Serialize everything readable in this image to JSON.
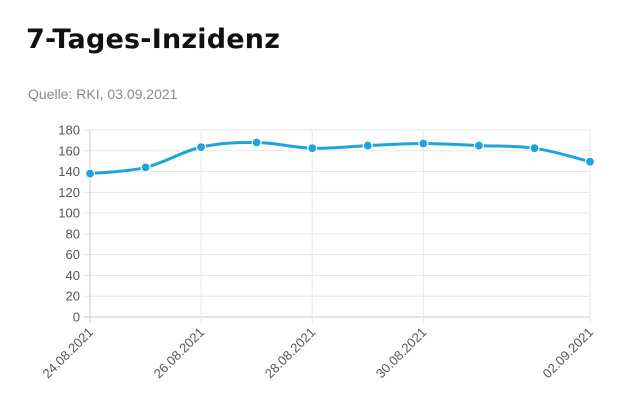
{
  "title": "7-Tages-Inzidenz",
  "source": "Quelle: RKI, 03.09.2021",
  "colors": {
    "line": "#1ea3dc",
    "grid": "#e6e6e6",
    "axis": "#c8c8c8",
    "text": "#555555"
  },
  "chart_data": {
    "type": "line",
    "x": [
      "24.08.2021",
      "25.08.2021",
      "26.08.2021",
      "27.08.2021",
      "28.08.2021",
      "29.08.2021",
      "30.08.2021",
      "31.08.2021",
      "01.09.2021",
      "02.09.2021"
    ],
    "x_tick_labels": [
      "24.08.2021",
      "26.08.2021",
      "28.08.2021",
      "30.08.2021",
      "02.09.2021"
    ],
    "series": [
      {
        "values": [
          138,
          144,
          163.5,
          168,
          162.5,
          165,
          167,
          165,
          162.5,
          149.5
        ]
      }
    ],
    "ylim": [
      0,
      180
    ],
    "y_ticks": [
      0,
      20,
      40,
      60,
      80,
      100,
      120,
      140,
      160,
      180
    ],
    "grid": true
  }
}
